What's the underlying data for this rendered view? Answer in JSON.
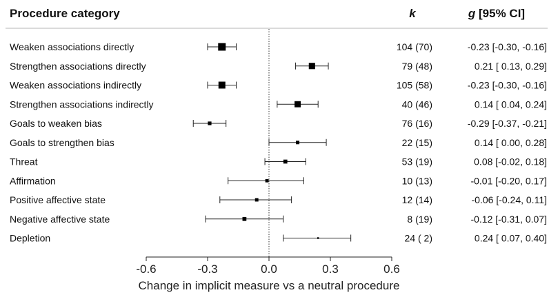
{
  "header": {
    "category_label": "Procedure category",
    "k_label": "k",
    "g_italic": "g",
    "g_rest": " [95% CI]"
  },
  "chart_data": {
    "type": "forest",
    "xlabel": "Change in implicit measure vs a neutral procedure",
    "xlim": [
      -0.6,
      0.6
    ],
    "xticks": [
      -0.6,
      -0.3,
      0.0,
      0.3,
      0.6
    ],
    "xtick_labels": [
      "-0.6",
      "-0.3",
      "0.0",
      "0.3",
      "0.6"
    ],
    "reference_line": 0,
    "rows": [
      {
        "label": "Weaken associations directly",
        "g": -0.23,
        "lo": -0.3,
        "hi": -0.16,
        "k_text": "104 (70)",
        "weight": 70,
        "ci_text": "-0.23 [-0.30, -0.16]"
      },
      {
        "label": "Strengthen associations directly",
        "g": 0.21,
        "lo": 0.13,
        "hi": 0.29,
        "k_text": "79 (48)",
        "weight": 48,
        "ci_text": "0.21 [ 0.13,  0.29]"
      },
      {
        "label": "Weaken associations indirectly",
        "g": -0.23,
        "lo": -0.3,
        "hi": -0.16,
        "k_text": "105 (58)",
        "weight": 58,
        "ci_text": "-0.23 [-0.30, -0.16]"
      },
      {
        "label": "Strengthen associations indirectly",
        "g": 0.14,
        "lo": 0.04,
        "hi": 0.24,
        "k_text": "40 (46)",
        "weight": 46,
        "ci_text": "0.14 [ 0.04,  0.24]"
      },
      {
        "label": "Goals to weaken bias",
        "g": -0.29,
        "lo": -0.37,
        "hi": -0.21,
        "k_text": "76 (16)",
        "weight": 16,
        "ci_text": "-0.29 [-0.37, -0.21]"
      },
      {
        "label": "Goals to strengthen bias",
        "g": 0.14,
        "lo": 0.0,
        "hi": 0.28,
        "k_text": "22 (15)",
        "weight": 15,
        "ci_text": "0.14 [ 0.00,  0.28]"
      },
      {
        "label": "Threat",
        "g": 0.08,
        "lo": -0.02,
        "hi": 0.18,
        "k_text": "53 (19)",
        "weight": 19,
        "ci_text": "0.08 [-0.02,  0.18]"
      },
      {
        "label": "Affirmation",
        "g": -0.01,
        "lo": -0.2,
        "hi": 0.17,
        "k_text": "10 (13)",
        "weight": 13,
        "ci_text": "-0.01 [-0.20,  0.17]"
      },
      {
        "label": "Positive affective state",
        "g": -0.06,
        "lo": -0.24,
        "hi": 0.11,
        "k_text": "12 (14)",
        "weight": 14,
        "ci_text": "-0.06 [-0.24,  0.11]"
      },
      {
        "label": "Negative affective state",
        "g": -0.12,
        "lo": -0.31,
        "hi": 0.07,
        "k_text": "8 (19)",
        "weight": 19,
        "ci_text": "-0.12 [-0.31,  0.07]"
      },
      {
        "label": "Depletion",
        "g": 0.24,
        "lo": 0.07,
        "hi": 0.4,
        "k_text": "24 ( 2)",
        "weight": 2,
        "ci_text": "0.24 [ 0.07,  0.40]"
      }
    ]
  }
}
